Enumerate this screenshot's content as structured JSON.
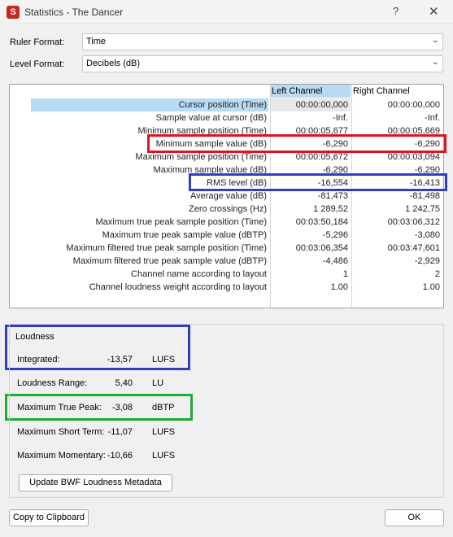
{
  "window": {
    "title": "Statistics - The Dancer",
    "app_icon_letter": "S",
    "help_glyph": "?",
    "close_glyph": "✕"
  },
  "ruler_format": {
    "label": "Ruler Format:",
    "value": "Time"
  },
  "level_format": {
    "label": "Level Format:",
    "value": "Decibels (dB)"
  },
  "table": {
    "headers": {
      "left": "Left Channel",
      "right": "Right Channel"
    },
    "rows": [
      {
        "label": "Cursor position (Time)",
        "left": "00:00:00,000",
        "right": "00:00:00,000"
      },
      {
        "label": "Sample value at cursor (dB)",
        "left": "-Inf.",
        "right": "-Inf."
      },
      {
        "label": "Minimum sample position (Time)",
        "left": "00:00:05,677",
        "right": "00:00:05,669"
      },
      {
        "label": "Minimum sample value (dB)",
        "left": "-6,290",
        "right": "-6,290"
      },
      {
        "label": "Maximum sample position (Time)",
        "left": "00:00:05,672",
        "right": "00:00:03,094"
      },
      {
        "label": "Maximum sample value (dB)",
        "left": "-6,290",
        "right": "-6,290"
      },
      {
        "label": "RMS level (dB)",
        "left": "-16,554",
        "right": "-16,413"
      },
      {
        "label": "Average value (dB)",
        "left": "-81,473",
        "right": "-81,498"
      },
      {
        "label": "Zero crossings (Hz)",
        "left": "1 289,52",
        "right": "1 242,75"
      },
      {
        "label": "Maximum true peak sample position (Time)",
        "left": "00:03:50,184",
        "right": "00:03:06,312"
      },
      {
        "label": "Maximum true peak sample value (dBTP)",
        "left": "-5,296",
        "right": "-3,080"
      },
      {
        "label": "Maximum filtered true peak sample position (Time)",
        "left": "00:03:06,354",
        "right": "00:03:47,601"
      },
      {
        "label": "Maximum filtered true peak sample value (dBTP)",
        "left": "-4,486",
        "right": "-2,929"
      },
      {
        "label": "Channel name according to layout",
        "left": "1",
        "right": "2"
      },
      {
        "label": "Channel loudness weight according to layout",
        "left": "1.00",
        "right": "1.00"
      }
    ]
  },
  "loudness": {
    "title": "Loudness",
    "items": [
      {
        "label": "Integrated:",
        "value": "-13,57",
        "unit": "LUFS"
      },
      {
        "label": "Loudness Range:",
        "value": "5,40",
        "unit": "LU"
      },
      {
        "label": "Maximum True Peak:",
        "value": "-3,08",
        "unit": "dBTP"
      },
      {
        "label": "Maximum Short Term:",
        "value": "-11,07",
        "unit": "LUFS"
      },
      {
        "label": "Maximum Momentary:",
        "value": "-10,66",
        "unit": "LUFS"
      }
    ],
    "update_button": "Update BWF Loudness Metadata"
  },
  "buttons": {
    "copy": "Copy to Clipboard",
    "ok": "OK"
  },
  "colors": {
    "highlight_red": "#e0141e",
    "highlight_blue": "#2f3fbf",
    "highlight_green": "#1faa3a",
    "selected_row": "#b8daf3"
  }
}
